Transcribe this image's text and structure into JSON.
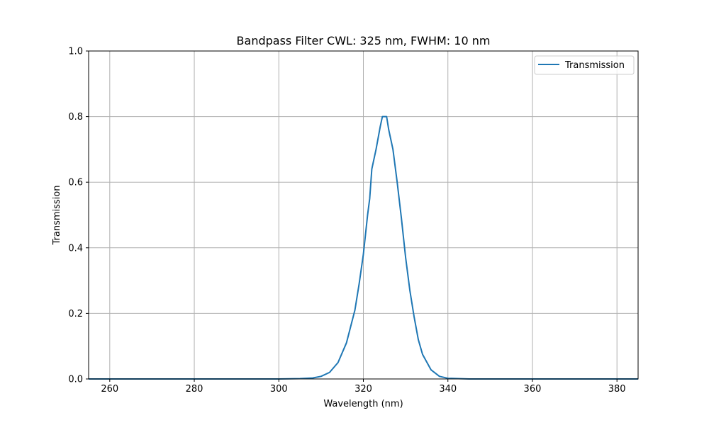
{
  "chart_data": {
    "type": "line",
    "title": "Bandpass Filter CWL: 325 nm, FWHM: 10 nm",
    "xlabel": "Wavelength (nm)",
    "ylabel": "Transmission",
    "xlim": [
      255,
      385
    ],
    "ylim": [
      0,
      1.0
    ],
    "xticks": [
      260,
      280,
      300,
      320,
      340,
      360,
      380
    ],
    "yticks": [
      0.0,
      0.2,
      0.4,
      0.6,
      0.8,
      1.0
    ],
    "xtick_labels": [
      "260",
      "280",
      "300",
      "320",
      "340",
      "360",
      "380"
    ],
    "ytick_labels": [
      "0.0",
      "0.2",
      "0.4",
      "0.6",
      "0.8",
      "1.0"
    ],
    "grid": true,
    "legend_position": "top-right",
    "colors": {
      "series": "#1f77b4",
      "grid": "#b0b0b0",
      "axes": "#000000"
    },
    "series": [
      {
        "name": "Transmission",
        "x": [
          255,
          300,
          305,
          308,
          310,
          312,
          314,
          316,
          318,
          319,
          320,
          320.5,
          321,
          321.5,
          322,
          323,
          324,
          324.5,
          325,
          325.5,
          326,
          327,
          328,
          329,
          329.5,
          330,
          331,
          332,
          333,
          334,
          336,
          338,
          340,
          345,
          385
        ],
        "y": [
          0,
          0,
          0.001,
          0.003,
          0.008,
          0.02,
          0.05,
          0.11,
          0.21,
          0.29,
          0.38,
          0.44,
          0.5,
          0.55,
          0.64,
          0.7,
          0.77,
          0.8,
          0.8,
          0.8,
          0.76,
          0.7,
          0.6,
          0.49,
          0.43,
          0.37,
          0.27,
          0.19,
          0.12,
          0.075,
          0.028,
          0.008,
          0.002,
          0,
          0
        ]
      }
    ]
  }
}
